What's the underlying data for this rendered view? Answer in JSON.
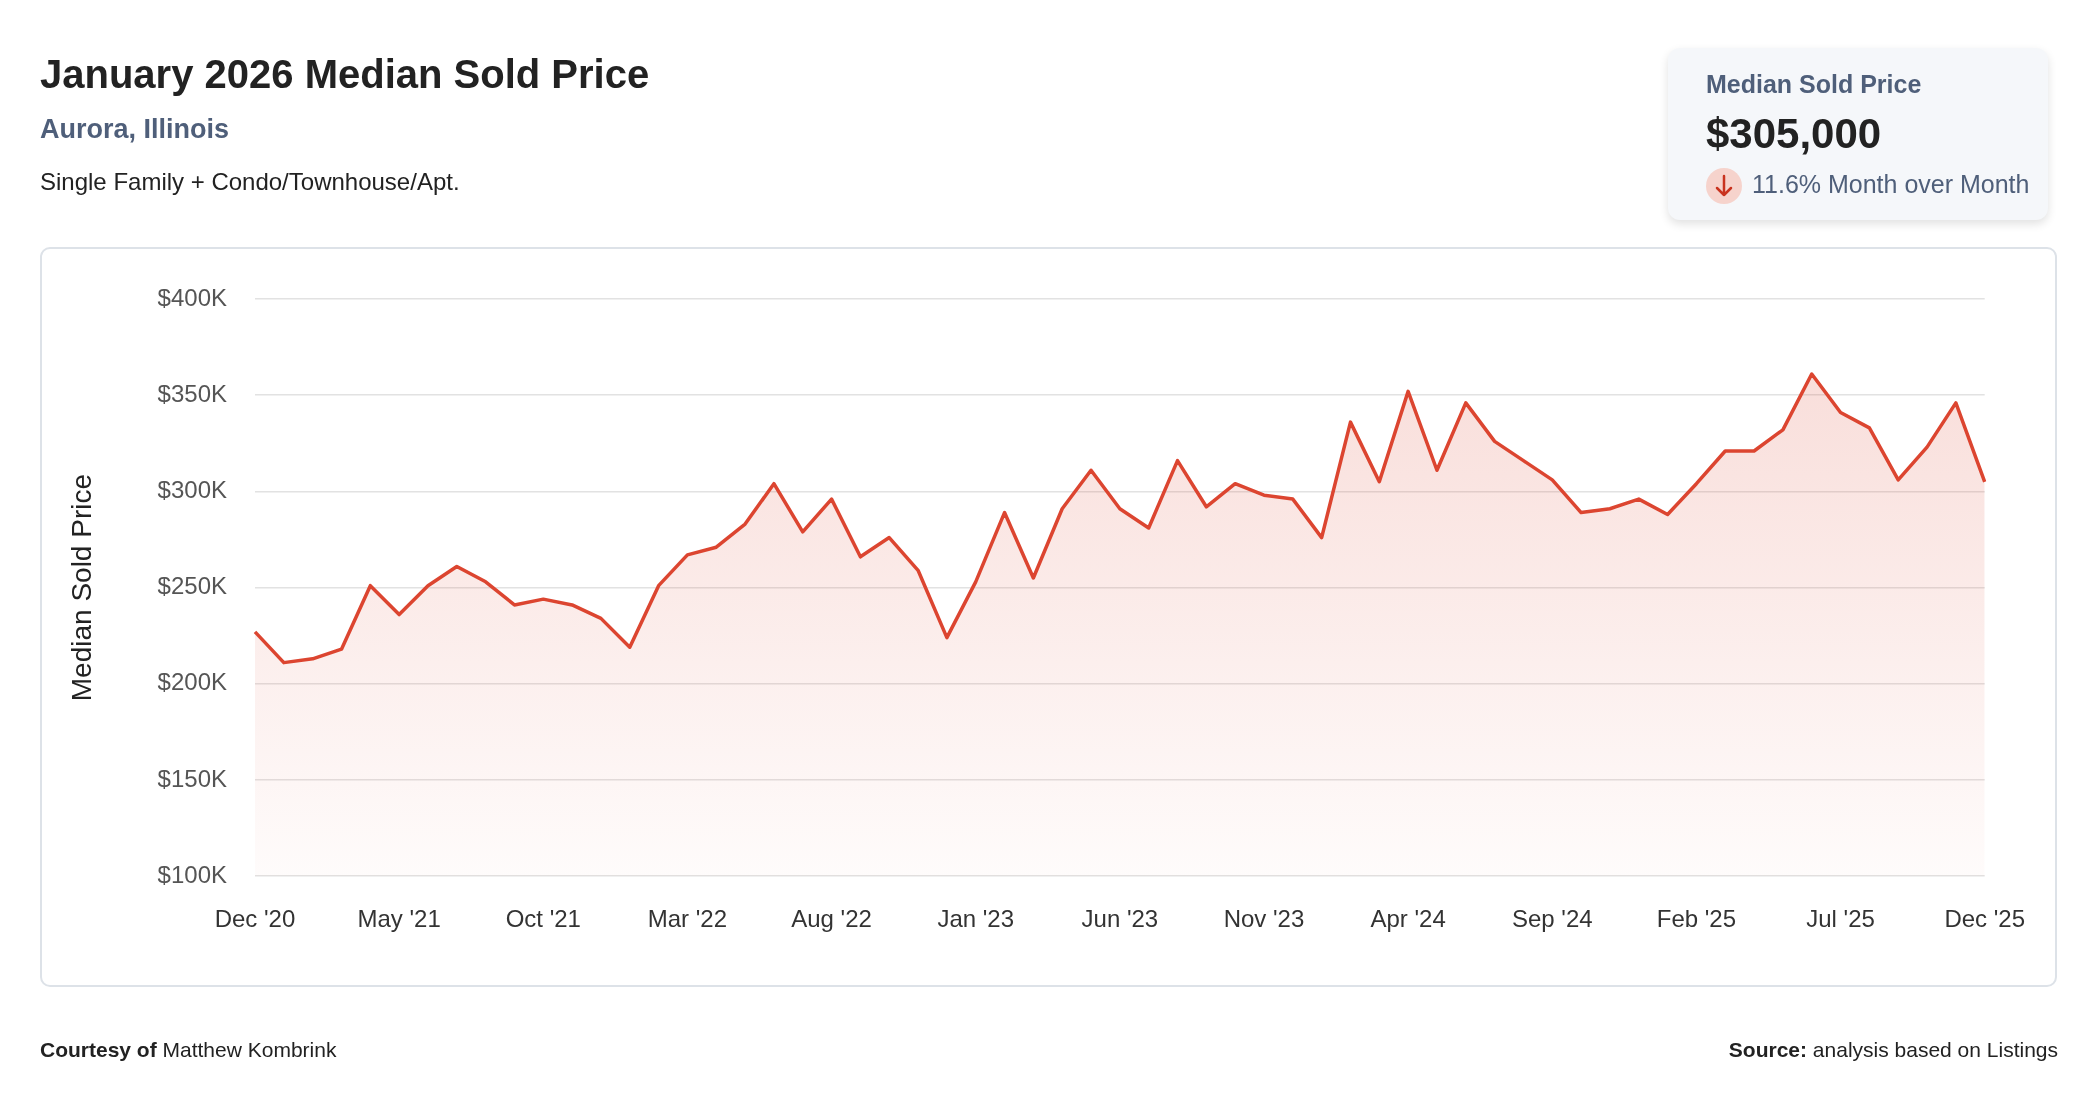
{
  "chart_data": {
    "type": "area",
    "title": "January 2026 Median Sold Price",
    "subtitle": "Aurora, Illinois",
    "annotations": [
      "Single Family + Condo/Townhouse/Apt.",
      "Median Sold Price",
      "$305,000",
      "11.6% Month over Month",
      "Courtesy of",
      "Matthew Kombrink",
      "Source:",
      "analysis based on Listings"
    ],
    "ylabel": "Median Sold Price",
    "categories": [
      "Dec '20",
      null,
      null,
      null,
      null,
      "May '21",
      null,
      null,
      null,
      null,
      "Oct '21",
      null,
      null,
      null,
      null,
      "Mar '22",
      null,
      null,
      null,
      null,
      "Aug '22",
      null,
      null,
      null,
      null,
      "Jan '23",
      null,
      null,
      null,
      null,
      "Jun '23",
      null,
      null,
      null,
      null,
      "Nov '23",
      null,
      null,
      null,
      null,
      "Apr '24",
      null,
      null,
      null,
      null,
      "Sep '24",
      null,
      null,
      null,
      null,
      "Feb '25",
      null,
      null,
      null,
      null,
      "Jul '25",
      null,
      null,
      null,
      null,
      "Dec '25"
    ],
    "series": [
      {
        "color": "#dc4530",
        "values": [
          227000,
          211000,
          213000,
          218000,
          251000,
          236000,
          251000,
          261000,
          253000,
          241000,
          244000,
          241000,
          234000,
          219000,
          251000,
          267000,
          271000,
          283000,
          304000,
          279000,
          296000,
          266000,
          276000,
          259000,
          224000,
          253000,
          289000,
          255000,
          291000,
          311000,
          291000,
          281000,
          316000,
          292000,
          304000,
          298000,
          296000,
          276000,
          336000,
          305000,
          352000,
          311000,
          346000,
          326000,
          316000,
          306000,
          289000,
          291000,
          296000,
          288000,
          304000,
          321000,
          321000,
          332000,
          361000,
          341000,
          333000,
          306000,
          323000,
          346000,
          305000
        ]
      }
    ],
    "ylim": [
      100000,
      400000
    ],
    "yticks": [
      {
        "value": 100000,
        "label": "$100K"
      },
      {
        "value": 150000,
        "label": "$150K"
      },
      {
        "value": 200000,
        "label": "$200K"
      },
      {
        "value": 250000,
        "label": "$250K"
      },
      {
        "value": 300000,
        "label": "$300K"
      },
      {
        "value": 350000,
        "label": "$350K"
      },
      {
        "value": 400000,
        "label": "$400K"
      }
    ],
    "grid": "y",
    "marker": "none",
    "line_style": "solid"
  }
}
